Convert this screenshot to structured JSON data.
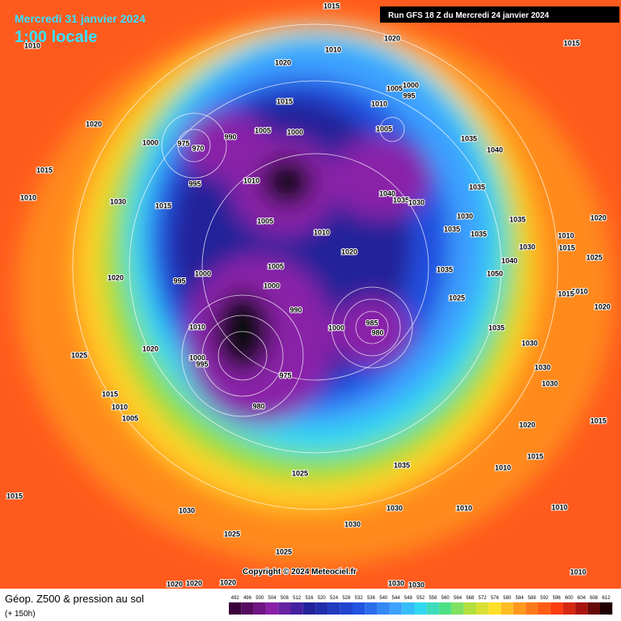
{
  "header": {
    "date": "Mercredi 31 janvier 2024",
    "time": "1:00 locale",
    "run": "Run GFS 18 Z du Mercredi 24 janvier 2024"
  },
  "map": {
    "pressure_labels": [
      1015,
      1010,
      1020,
      1015,
      1020,
      1010,
      1005,
      1000,
      995,
      1010,
      1015,
      1020,
      1000,
      975,
      970,
      990,
      1005,
      1000,
      1005,
      1035,
      1040,
      1015,
      1010,
      995,
      1010,
      1015,
      1030,
      1040,
      1035,
      1030,
      1035,
      1030,
      1035,
      1020,
      1005,
      1010,
      1035,
      1035,
      1010,
      1015,
      1030,
      1025,
      1020,
      1005,
      1035,
      1040,
      1050,
      1020,
      995,
      1000,
      1000,
      1010,
      1015,
      1025,
      990,
      1020,
      985,
      980,
      1000,
      1010,
      1035,
      1020,
      1025,
      1030,
      1000,
      995,
      975,
      1030,
      1030,
      1015,
      1010,
      1005,
      980,
      1015,
      1020,
      1015,
      1035,
      1010,
      1025,
      1015,
      1030,
      1010,
      1030,
      1010,
      1030,
      1025,
      1025,
      1010,
      1020,
      1020,
      1020,
      1030,
      1030
    ]
  },
  "copyright": "Copyright © 2024 Meteociel.fr",
  "legend": {
    "title": "Géop. Z500 & pression au sol",
    "subtitle": "(+ 150h)",
    "scale": [
      492,
      496,
      500,
      504,
      508,
      512,
      516,
      520,
      524,
      528,
      532,
      536,
      540,
      544,
      548,
      552,
      556,
      560,
      564,
      568,
      572,
      576,
      580,
      584,
      588,
      592,
      596,
      600,
      604,
      608,
      612
    ]
  }
}
